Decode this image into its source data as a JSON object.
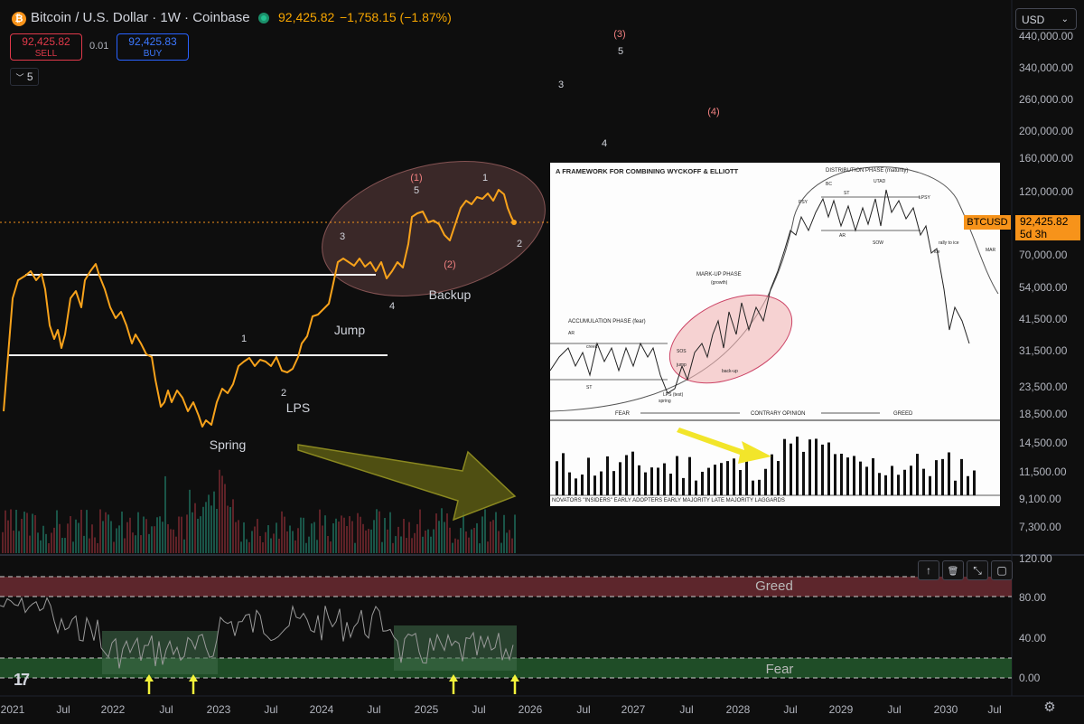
{
  "header": {
    "coin_glyph": "₿",
    "title": "Bitcoin / U.S. Dollar · 1W · Coinbase",
    "last_price": "92,425.82",
    "change": "−1,758.15 (−1.87%)",
    "sell_price": "92,425.82",
    "sell_label": "SELL",
    "buy_price": "92,425.83",
    "buy_label": "BUY",
    "spread": "0.01",
    "indicators_count": "5",
    "currency": "USD"
  },
  "price_axis": {
    "labels": [
      "440,000.00",
      "340,000.00",
      "260,000.00",
      "200,000.00",
      "160,000.00",
      "120,000.00",
      "70,000.00",
      "54,000.00",
      "41,500.00",
      "31,500.00",
      "23,500.00",
      "18,500.00",
      "14,500.00",
      "11,500.00",
      "9,100.00",
      "7,300.00"
    ],
    "symbol_tag": "BTCUSD",
    "current": "92,425.82",
    "countdown": "5d 3h"
  },
  "oscillator_axis": {
    "labels": [
      "120.00",
      "80.00",
      "40.00",
      "0.00"
    ]
  },
  "time_axis": {
    "labels": [
      "2021",
      "Jul",
      "2022",
      "Jul",
      "2023",
      "Jul",
      "2024",
      "Jul",
      "2025",
      "Jul",
      "2026",
      "Jul",
      "2027",
      "Jul",
      "2028",
      "Jul",
      "2029",
      "Jul",
      "2030",
      "Jul"
    ]
  },
  "annotations": {
    "spring": "Spring",
    "lps": "LPS",
    "jump": "Jump",
    "backup": "Backup",
    "greed": "Greed",
    "fear": "Fear",
    "waves": [
      {
        "t": "1",
        "c": "#d1d4dc"
      },
      {
        "t": "2",
        "c": "#d1d4dc"
      },
      {
        "t": "3",
        "c": "#d1d4dc"
      },
      {
        "t": "4",
        "c": "#d1d4dc"
      },
      {
        "t": "(1)",
        "c": "#f08080"
      },
      {
        "t": "5",
        "c": "#d1d4dc"
      },
      {
        "t": "1",
        "c": "#d1d4dc"
      },
      {
        "t": "(2)",
        "c": "#f08080"
      },
      {
        "t": "2",
        "c": "#d1d4dc"
      },
      {
        "t": "(3)",
        "c": "#f08080"
      },
      {
        "t": "5",
        "c": "#d1d4dc"
      },
      {
        "t": "3",
        "c": "#d1d4dc"
      },
      {
        "t": "(4)",
        "c": "#f08080"
      },
      {
        "t": "4",
        "c": "#d1d4dc"
      }
    ]
  },
  "inset": {
    "title": "A FRAMEWORK FOR COMBINING WYCKOFF & ELLIOTT",
    "accumulation": "ACCUMULATION PHASE (fear)",
    "markup": "MARK-UP PHASE",
    "growth": "(growth)",
    "distribution": "DISTRIBUTION PHASE (maturity)",
    "fear": "FEAR",
    "contrary": "CONTRARY OPINION",
    "greed": "GREED",
    "groups": "NOVATORS \"INSIDERS\"   EARLY ADOPTERS   EARLY MAJORITY   LATE MAJORITY   LAGGARDS",
    "small_labels": [
      "AR",
      "creek",
      "ST",
      "spring",
      "LPS (test)",
      "SOS",
      "jump",
      "back-up",
      "PSY",
      "BC",
      "ST",
      "UTAD",
      "LPSY",
      "AR",
      "SOW",
      "ice",
      "rally to ice",
      "MAR"
    ]
  },
  "toolbar": {
    "up": "↑",
    "delete": "🗑",
    "collapse": "⤡",
    "maximize": "▢",
    "settings": "⚙"
  }
}
